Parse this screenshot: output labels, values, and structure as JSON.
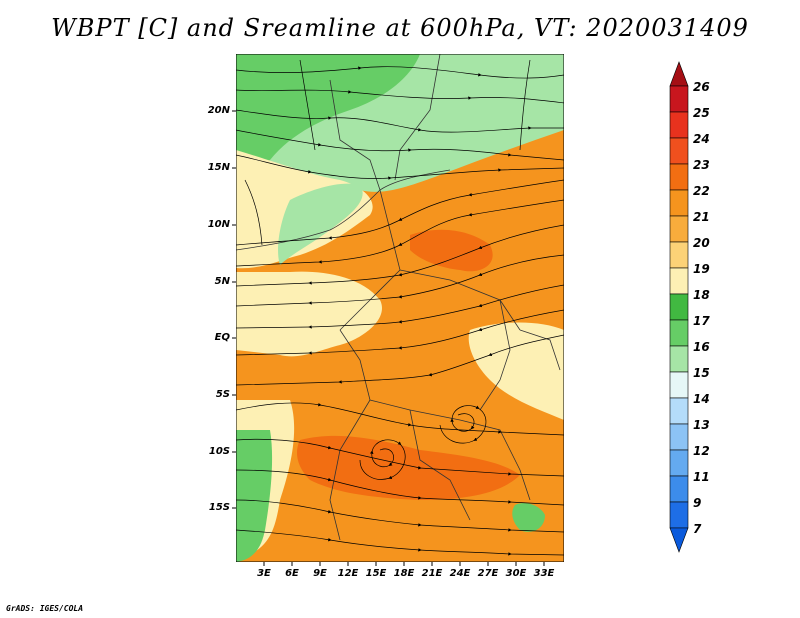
{
  "title": "WBPT [C] and Sreamline at 600hPa, VT: 2020031409",
  "credit": "GrADS: IGES/COLA",
  "map": {
    "lat_labels": [
      "20N",
      "15N",
      "10N",
      "5N",
      "EQ",
      "5S",
      "10S",
      "15S"
    ],
    "lon_labels": [
      "3E",
      "6E",
      "9E",
      "12E",
      "15E",
      "18E",
      "21E",
      "24E",
      "27E",
      "30E",
      "33E"
    ]
  },
  "colorbar": {
    "labels": [
      "26",
      "25",
      "24",
      "23",
      "22",
      "21",
      "20",
      "19",
      "18",
      "17",
      "16",
      "15",
      "14",
      "13",
      "12",
      "11",
      "9",
      "7"
    ],
    "colors": [
      "#a50f15",
      "#c8161e",
      "#e8321e",
      "#f0501e",
      "#f26e12",
      "#f5941e",
      "#f8ac3c",
      "#fcd277",
      "#fdf0b4",
      "#41b941",
      "#66cd66",
      "#a6e5a6",
      "#e6f7f7",
      "#b4dcfa",
      "#8cc3f5",
      "#64aaf0",
      "#3c8ceb",
      "#1e6ee6",
      "#0a5adc"
    ]
  },
  "fields": [
    {
      "name": "saharan-green",
      "color": "#a6e5a6"
    },
    {
      "name": "north-green",
      "color": "#66cd66"
    },
    {
      "name": "west-pale",
      "color": "#fdf0b4"
    },
    {
      "name": "main-orange",
      "color": "#f5941e"
    },
    {
      "name": "hot-orange",
      "color": "#f26e12"
    },
    {
      "name": "angola-green",
      "color": "#66cd66"
    }
  ]
}
